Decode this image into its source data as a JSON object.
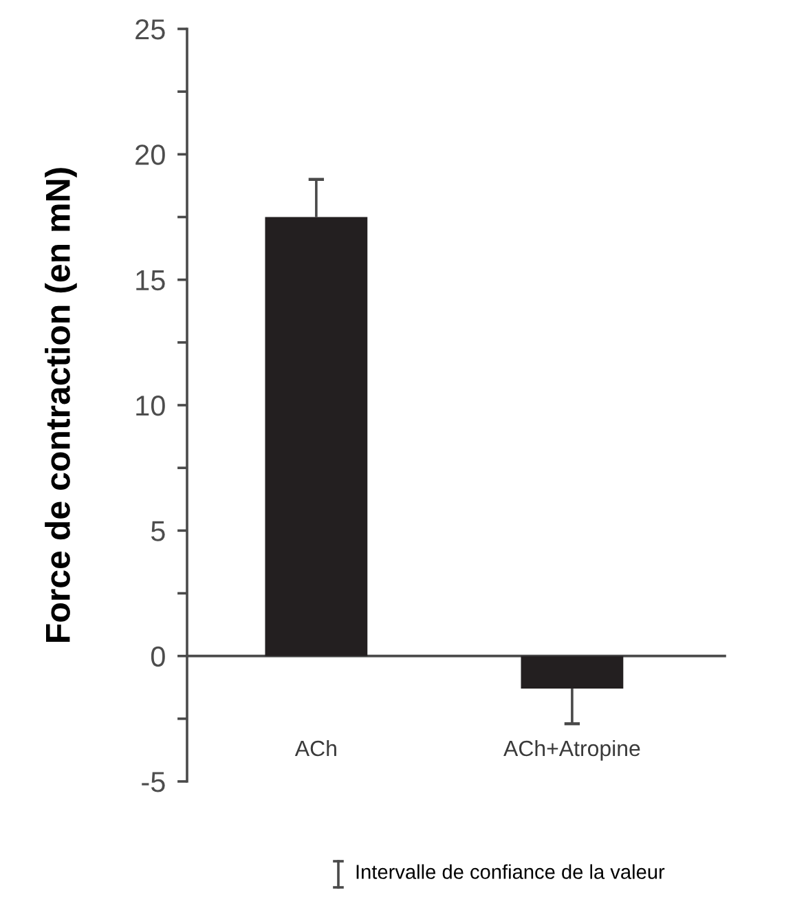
{
  "chart_data": {
    "type": "bar",
    "ylabel": "Force de contraction (en mN)",
    "categories": [
      "ACh",
      "ACh+Atropine"
    ],
    "values": [
      17.5,
      -1.3
    ],
    "color": "#231f20",
    "errors": [
      [
        17.5,
        19.0
      ],
      [
        -2.7,
        -1.3
      ]
    ],
    "ylim": [
      -5,
      25
    ],
    "yticks": [
      -5,
      {
        "value": -2.5,
        "label": null
      },
      0,
      {
        "value": 2.5,
        "label": null
      },
      5,
      {
        "value": 7.5,
        "label": null
      },
      10,
      {
        "value": 12.5,
        "label": null
      },
      15,
      {
        "value": 17.5,
        "label": null
      },
      20,
      {
        "value": 22.5,
        "label": null
      },
      25
    ],
    "annotations": [
      "Intervalle de confiance de la valeur"
    ]
  }
}
